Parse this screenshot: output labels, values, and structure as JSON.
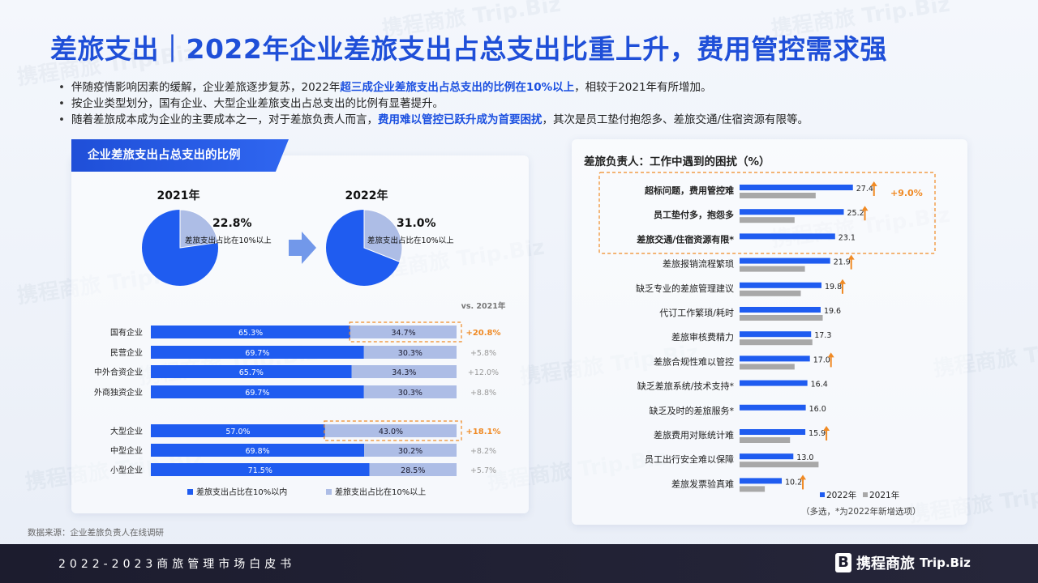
{
  "title": "差旅支出｜2022年企业差旅支出占总支出比重上升，费用管控需求强",
  "bullets": [
    {
      "pre": "伴随疫情影响因素的缓解，企业差旅逐步复苏，2022年",
      "hl": "超三成企业差旅支出占总支出的比例在10%以上",
      "post": "，相较于2021年有所增加。"
    },
    {
      "pre": "按企业类型划分，国有企业、大型企业差旅支出占总支出的比例有显著提升。",
      "hl": "",
      "post": ""
    },
    {
      "pre": "随着差旅成本成为企业的主要成本之一，对于差旅负责人而言，",
      "hl": "费用难以管控已跃升成为首要困扰",
      "post": "，其次是员工垫付抱怨多、差旅交通/住宿资源有限等。"
    }
  ],
  "left_panel_title": "企业差旅支出占总支出的比例",
  "right_panel_title": "差旅负责人：工作中遇到的困扰（%）",
  "source": "数据来源：企业差旅负责人在线调研",
  "footer_text": "2022-2023商旅管理市场白皮书",
  "logo": {
    "brand": "携程商旅",
    "trip": "Trip.Biz"
  },
  "watermark": "携程商旅 Trip.Biz",
  "colors": {
    "blue": "#1f5cf0",
    "light": "#adbde6",
    "gray": "#a8a8a8",
    "orange": "#f08a24",
    "title": "#1f4fd8"
  },
  "chart_data": [
    {
      "type": "pie",
      "title": "2021年",
      "slices": [
        {
          "label": "差旅支出占比在10%以上",
          "value": 22.8,
          "display": "22.8%"
        },
        {
          "label": "差旅支出占比在10%以内",
          "value": 77.2
        }
      ]
    },
    {
      "type": "pie",
      "title": "2022年",
      "slices": [
        {
          "label": "差旅支出占比在10%以上",
          "value": 31.0,
          "display": "31.0%"
        },
        {
          "label": "差旅支出占比在10%以内",
          "value": 69.0
        }
      ]
    },
    {
      "type": "bar",
      "stacked": true,
      "orientation": "horizontal",
      "change_header": "vs. 2021年",
      "legend": [
        "差旅支出占比在10%以内",
        "差旅支出占比在10%以上"
      ],
      "groups": [
        [
          {
            "category": "国有企业",
            "inside": 65.3,
            "above": 34.7,
            "change": "+20.8%",
            "highlight": true
          },
          {
            "category": "民营企业",
            "inside": 69.7,
            "above": 30.3,
            "change": "+5.8%",
            "highlight": false
          },
          {
            "category": "中外合资企业",
            "inside": 65.7,
            "above": 34.3,
            "change": "+12.0%",
            "highlight": false
          },
          {
            "category": "外商独资企业",
            "inside": 69.7,
            "above": 30.3,
            "change": "+8.8%",
            "highlight": false
          }
        ],
        [
          {
            "category": "大型企业",
            "inside": 57.0,
            "above": 43.0,
            "change": "+18.1%",
            "highlight": true
          },
          {
            "category": "中型企业",
            "inside": 69.8,
            "above": 30.2,
            "change": "+8.2%",
            "highlight": false
          },
          {
            "category": "小型企业",
            "inside": 71.5,
            "above": 28.5,
            "change": "+5.7%",
            "highlight": false
          }
        ]
      ]
    },
    {
      "type": "bar",
      "orientation": "horizontal",
      "legend": [
        "2022年",
        "2021年"
      ],
      "note": "（多选，*为2022年新增选项）",
      "highlight_change": "+9.0%",
      "items": [
        {
          "category": "超标问题，费用管控难",
          "v2022": 27.4,
          "v2021": 18.4,
          "up": true
        },
        {
          "category": "员工垫付多，抱怨多",
          "v2022": 25.2,
          "v2021": 13.3,
          "up": true
        },
        {
          "category": "差旅交通/住宿资源有限*",
          "v2022": 23.1,
          "v2021": null,
          "up": false
        },
        {
          "category": "差旅报销流程繁琐",
          "v2022": 21.9,
          "v2021": 15.8,
          "up": true
        },
        {
          "category": "缺乏专业的差旅管理建议",
          "v2022": 19.8,
          "v2021": 14.8,
          "up": true
        },
        {
          "category": "代订工作繁琐/耗时",
          "v2022": 19.6,
          "v2021": 20.1,
          "up": false
        },
        {
          "category": "差旅审核费精力",
          "v2022": 17.3,
          "v2021": 17.6,
          "up": false
        },
        {
          "category": "差旅合规性难以管控",
          "v2022": 17.0,
          "v2021": 13.3,
          "up": true
        },
        {
          "category": "缺乏差旅系统/技术支持*",
          "v2022": 16.4,
          "v2021": null,
          "up": false
        },
        {
          "category": "缺乏及时的差旅服务*",
          "v2022": 16.0,
          "v2021": null,
          "up": false
        },
        {
          "category": "差旅费用对账统计难",
          "v2022": 15.9,
          "v2021": 12.2,
          "up": true
        },
        {
          "category": "员工出行安全难以保障",
          "v2022": 13.0,
          "v2021": 19.1,
          "up": false
        },
        {
          "category": "差旅发票验真难",
          "v2022": 10.2,
          "v2021": 6.1,
          "up": true
        }
      ]
    }
  ]
}
